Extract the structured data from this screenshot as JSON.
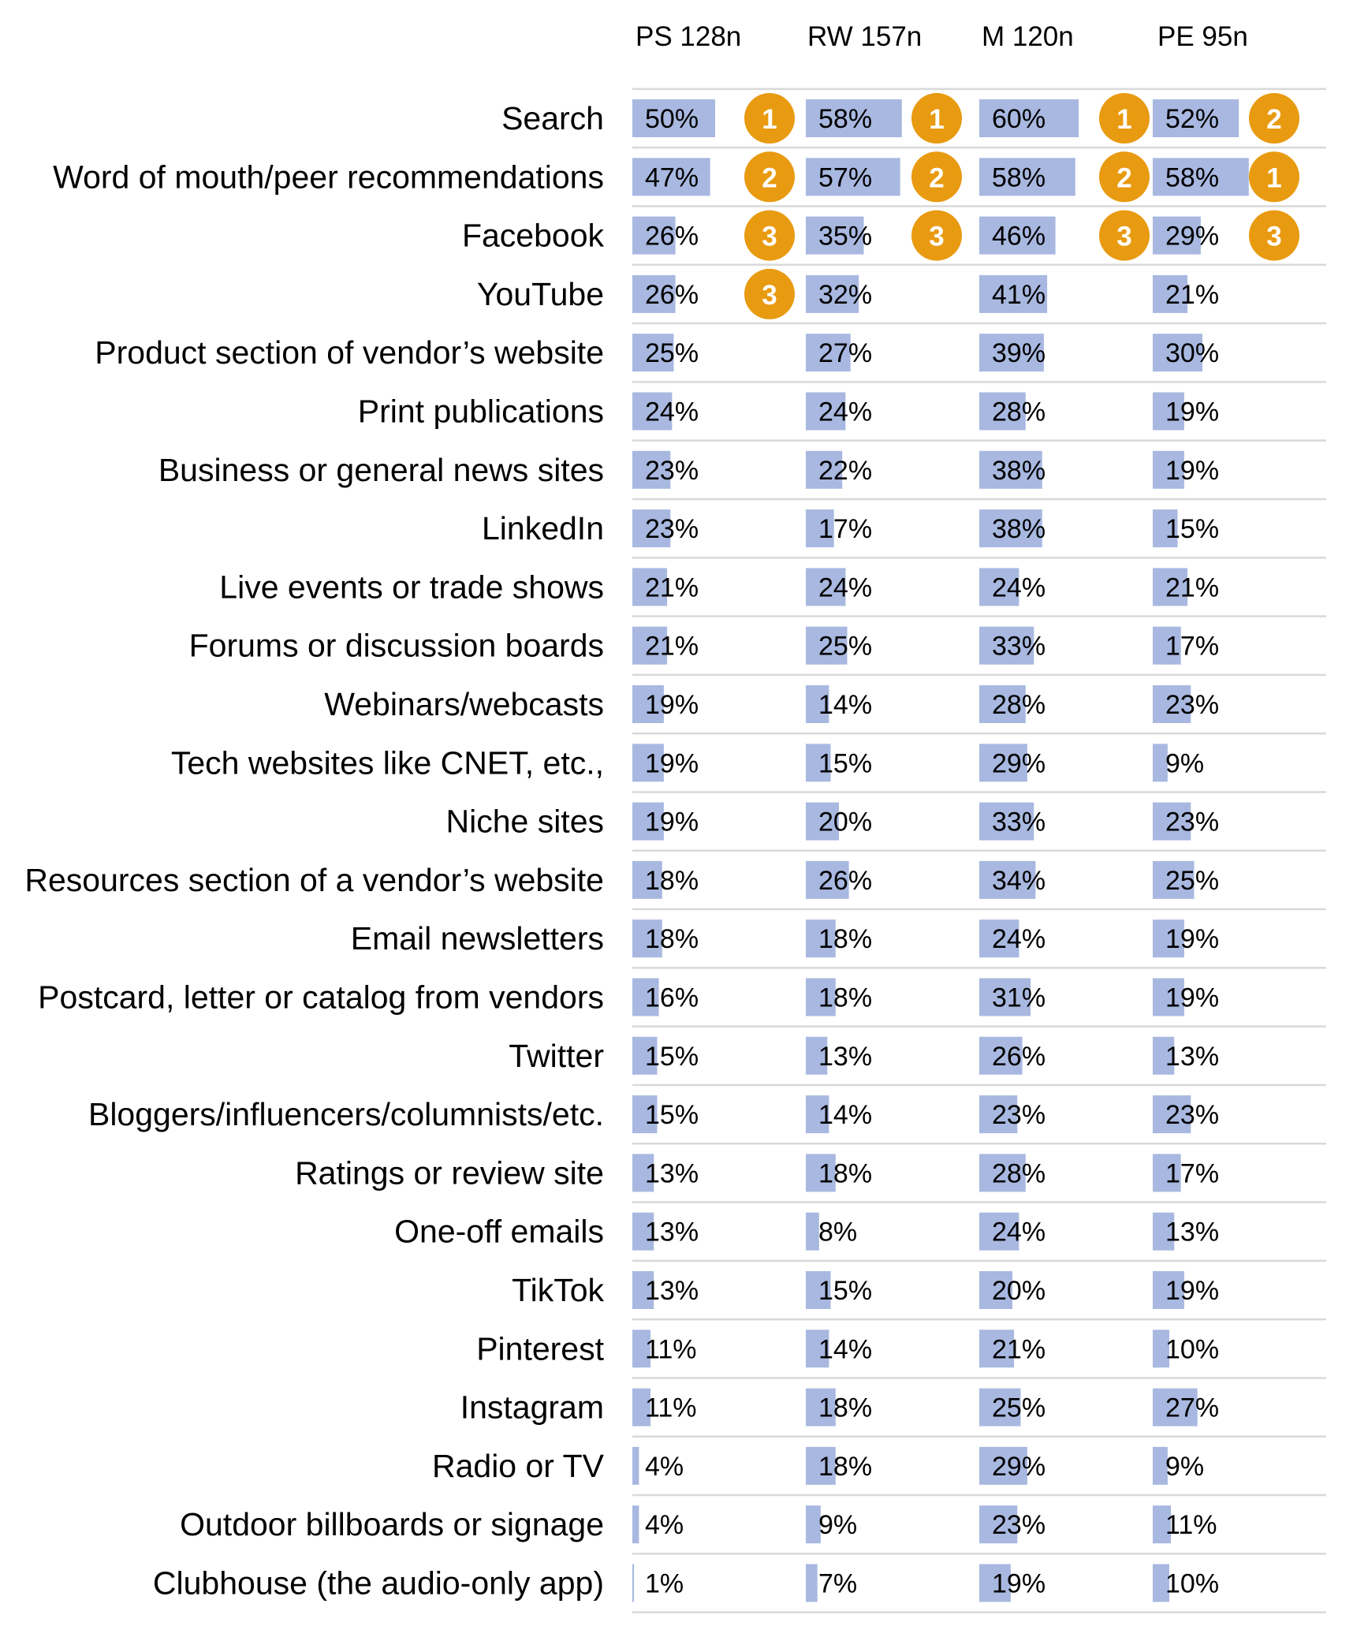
{
  "chart_data": {
    "type": "bar",
    "title": "",
    "colors": {
      "bar": "#a8b8e0",
      "rank_badge": "#e89a10",
      "grid": "#d9d9d9"
    },
    "columns": [
      "PS 128n",
      "RW 157n",
      "M 120n",
      "PE 95n"
    ],
    "categories": [
      "Search",
      "Word of mouth/peer recommendations",
      "Facebook",
      "YouTube",
      "Product section of vendor’s website",
      "Print publications",
      "Business or general news sites",
      "LinkedIn",
      "Live events or trade shows",
      "Forums or discussion boards",
      "Webinars/webcasts",
      "Tech websites like CNET, etc.,",
      "Niche sites",
      "Resources section of a vendor’s website",
      "Email newsletters",
      "Postcard, letter or catalog from vendors",
      "Twitter",
      "Bloggers/influencers/columnists/etc.",
      "Ratings or review site",
      "One-off emails",
      "TikTok",
      "Pinterest",
      "Instagram",
      "Radio or TV",
      "Outdoor billboards or signage",
      "Clubhouse (the audio-only app)"
    ],
    "series": [
      {
        "values": [
          50,
          47,
          26,
          26,
          25,
          24,
          23,
          23,
          21,
          21,
          19,
          19,
          19,
          18,
          18,
          16,
          15,
          15,
          13,
          13,
          13,
          11,
          11,
          4,
          4,
          1
        ]
      },
      {
        "values": [
          58,
          57,
          35,
          32,
          27,
          24,
          22,
          17,
          24,
          25,
          14,
          15,
          20,
          26,
          18,
          18,
          13,
          14,
          18,
          8,
          15,
          14,
          18,
          18,
          9,
          7
        ]
      },
      {
        "values": [
          60,
          58,
          46,
          41,
          39,
          28,
          38,
          38,
          24,
          33,
          28,
          29,
          33,
          34,
          24,
          31,
          26,
          23,
          28,
          24,
          20,
          21,
          25,
          29,
          23,
          19
        ]
      },
      {
        "values": [
          52,
          58,
          29,
          21,
          30,
          19,
          19,
          15,
          21,
          17,
          23,
          9,
          23,
          25,
          19,
          19,
          13,
          23,
          17,
          13,
          19,
          10,
          27,
          9,
          11,
          10
        ]
      }
    ],
    "value_labels": [
      [
        "50%",
        "47%",
        "26%",
        "26%",
        "25%",
        "24%",
        "23%",
        "23%",
        "21%",
        "21%",
        "19%",
        "19%",
        "19%",
        "18%",
        "18%",
        "16%",
        "15%",
        "15%",
        "13%",
        "13%",
        "13%",
        "11%",
        "11%",
        "4%",
        "4%",
        "1%"
      ],
      [
        "58%",
        "57%",
        "35%",
        "32%",
        "27%",
        "24%",
        "22%",
        "17%",
        "24%",
        "25%",
        "14%",
        "15%",
        "20%",
        "26%",
        "18%",
        "18%",
        "13%",
        "14%",
        "18%",
        "8%",
        "15%",
        "14%",
        "18%",
        "18%",
        "9%",
        "7%"
      ],
      [
        "60%",
        "58%",
        "46%",
        "41%",
        "39%",
        "28%",
        "38%",
        "38%",
        "24%",
        "33%",
        "28%",
        "29%",
        "33%",
        "34%",
        "24%",
        "31%",
        "26%",
        "23%",
        "28%",
        "24%",
        "20%",
        "21%",
        "25%",
        "29%",
        "23%",
        "19%"
      ],
      [
        "52%",
        "58%",
        "29%",
        "21%",
        "30%",
        "19%",
        "19%",
        "15%",
        "21%",
        "17%",
        "23%",
        "9%",
        "23%",
        "25%",
        "19%",
        "19%",
        "13%",
        "23%",
        "17%",
        "13%",
        "19%",
        "10%",
        "27%",
        "9%",
        "11%",
        "10%"
      ]
    ],
    "ranks": [
      {
        "column": 0,
        "row": 0,
        "label": "1"
      },
      {
        "column": 0,
        "row": 1,
        "label": "2"
      },
      {
        "column": 0,
        "row": 2,
        "label": "3"
      },
      {
        "column": 0,
        "row": 3,
        "label": "3"
      },
      {
        "column": 1,
        "row": 0,
        "label": "1"
      },
      {
        "column": 1,
        "row": 1,
        "label": "2"
      },
      {
        "column": 1,
        "row": 2,
        "label": "3"
      },
      {
        "column": 2,
        "row": 0,
        "label": "1"
      },
      {
        "column": 2,
        "row": 1,
        "label": "2"
      },
      {
        "column": 2,
        "row": 2,
        "label": "3"
      },
      {
        "column": 3,
        "row": 0,
        "label": "2"
      },
      {
        "column": 3,
        "row": 1,
        "label": "1"
      },
      {
        "column": 3,
        "row": 2,
        "label": "3"
      }
    ]
  }
}
